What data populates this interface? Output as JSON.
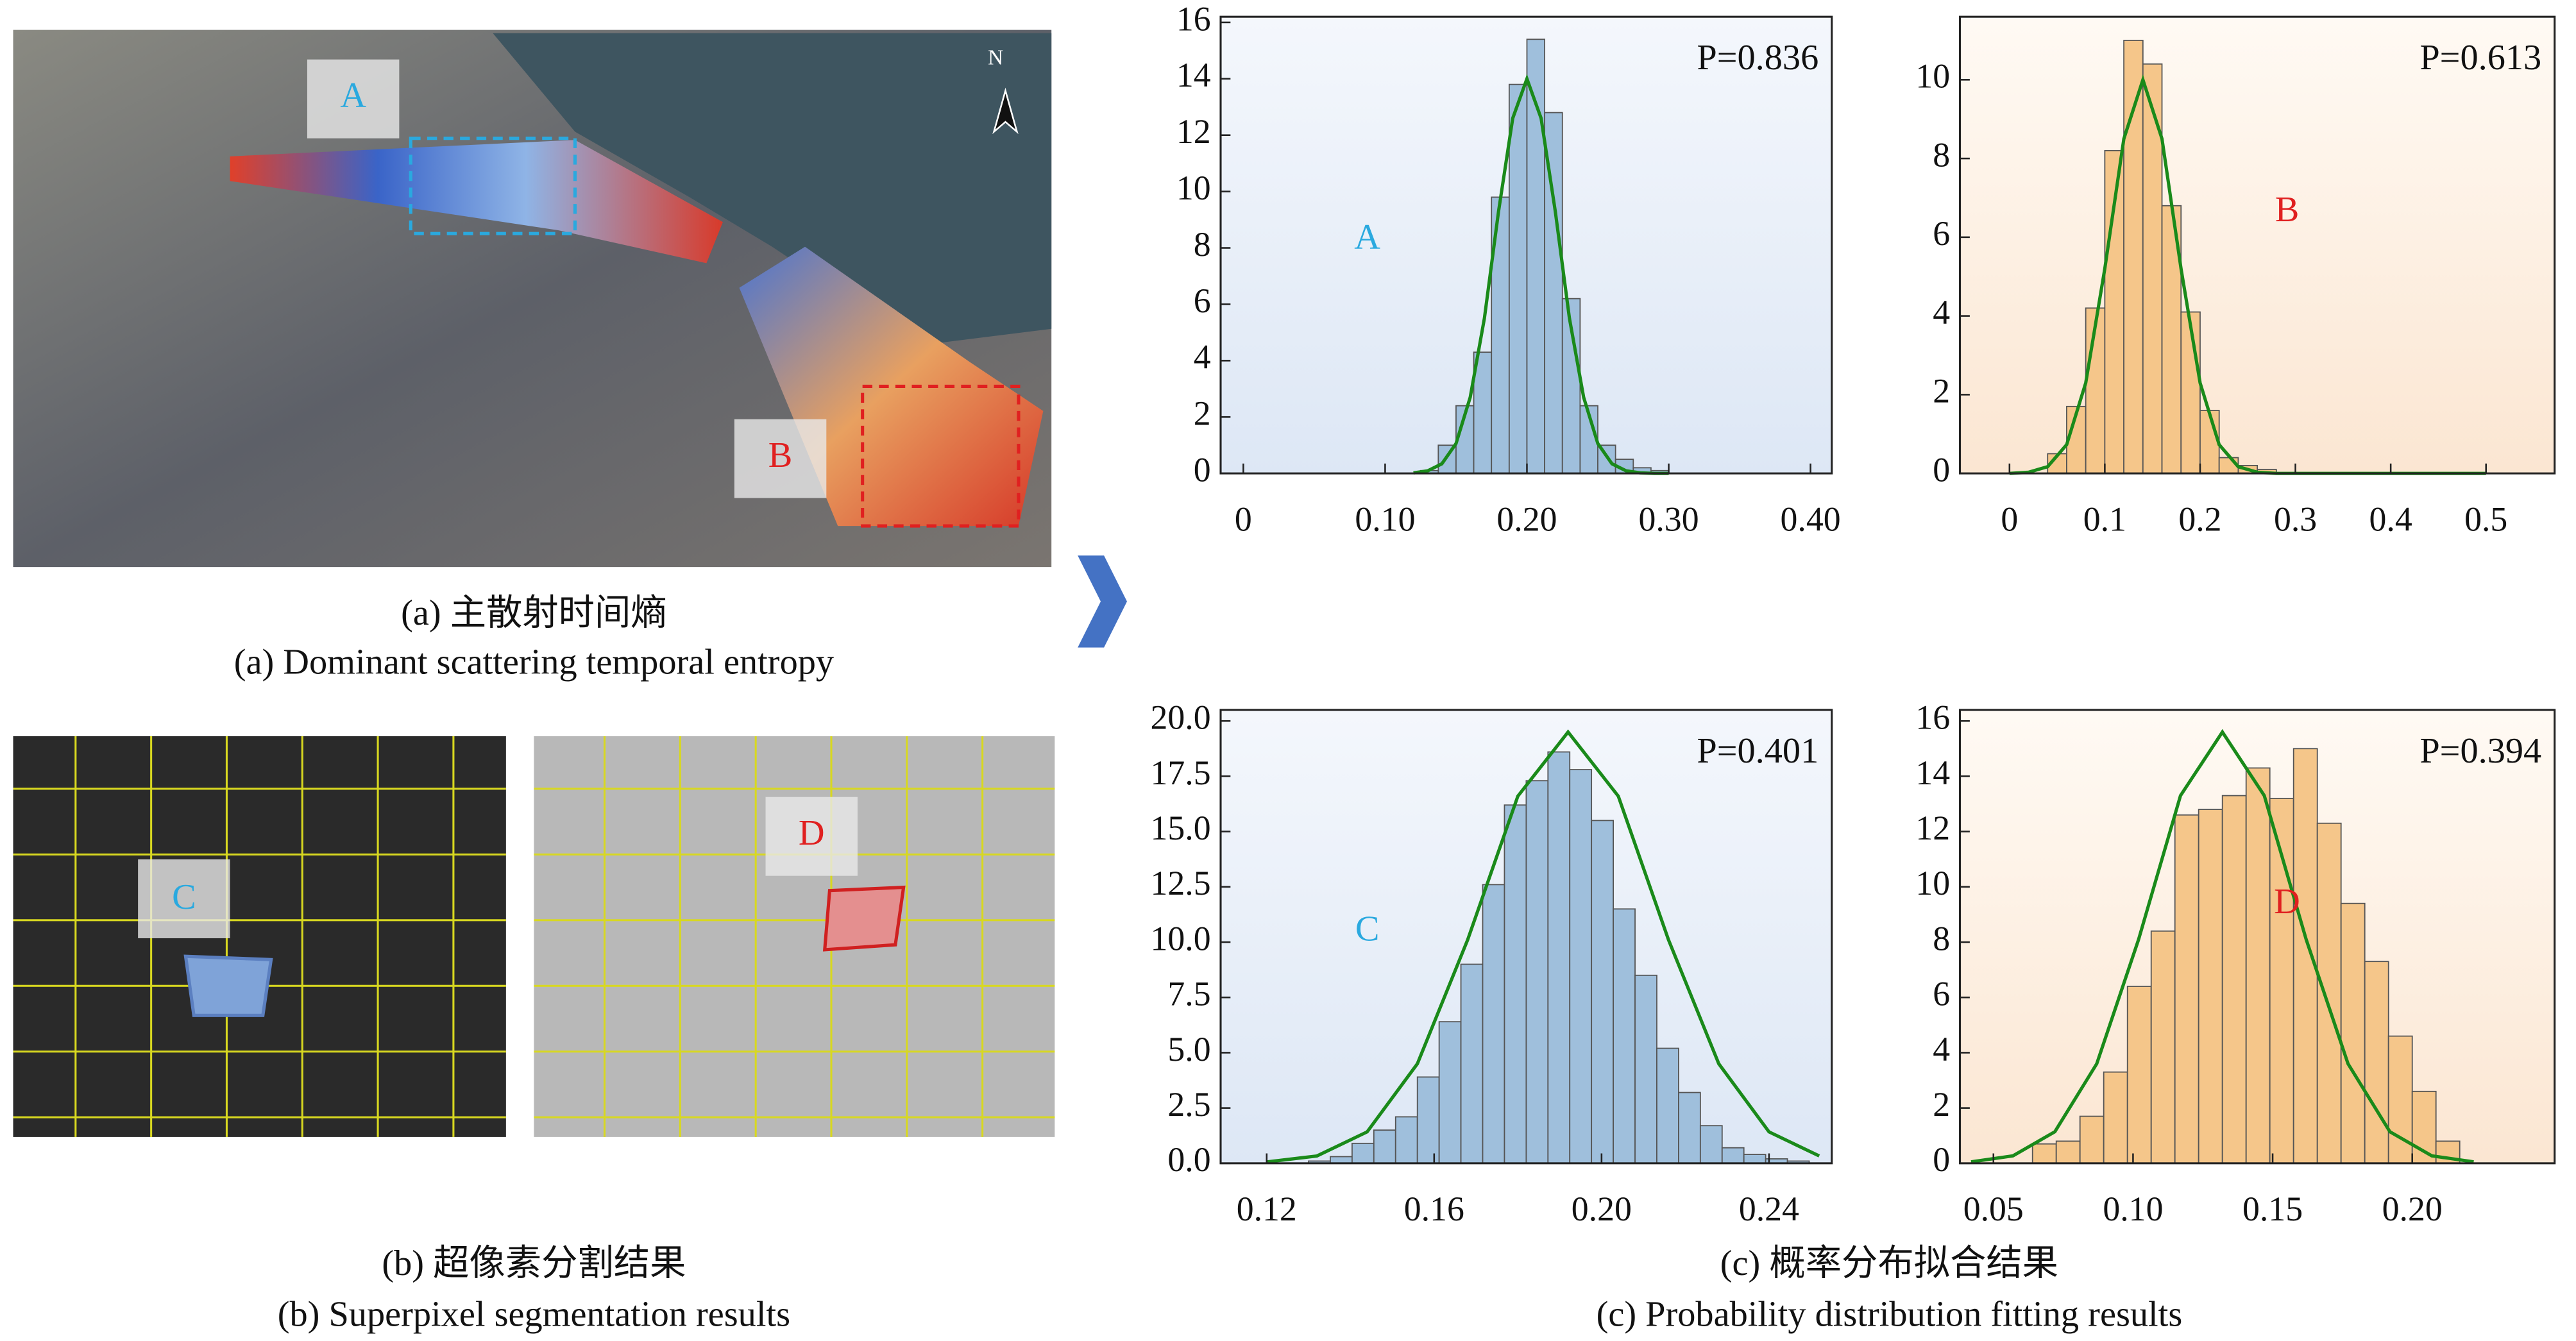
{
  "captions": {
    "a_zh": "(a) 主散射时间熵",
    "a_en": "(a) Dominant scattering temporal entropy",
    "b_zh": "(b) 超像素分割结果",
    "b_en": "(b) Superpixel segmentation results",
    "c_zh": "(c) 概率分布拟合结果",
    "c_en": "(c) Probability distribution fitting results"
  },
  "image_labels": [
    "A",
    "B",
    "C",
    "D"
  ],
  "north": "N",
  "chart_data": [
    {
      "type": "histogram",
      "label": "A",
      "label_color": "#2aa9df",
      "annotation": "P=0.836",
      "background": "blue",
      "color": "#9fbfdc",
      "edgecolor": "#555555",
      "bins": [
        0.125,
        0.1375,
        0.15,
        0.1625,
        0.175,
        0.1875,
        0.2,
        0.2125,
        0.225,
        0.2375,
        0.25,
        0.2625,
        0.275,
        0.2875,
        0.3
      ],
      "values": [
        0.1,
        1.0,
        2.4,
        4.3,
        9.8,
        13.8,
        15.4,
        12.8,
        6.2,
        2.4,
        1.0,
        0.5,
        0.2,
        0.1
      ],
      "fit": {
        "color": "#1a8a1a",
        "x": [
          0.12,
          0.13,
          0.14,
          0.15,
          0.16,
          0.17,
          0.18,
          0.19,
          0.2,
          0.21,
          0.22,
          0.23,
          0.24,
          0.25,
          0.26,
          0.27,
          0.28,
          0.29,
          0.3
        ],
        "values": [
          0.02,
          0.09,
          0.34,
          1.06,
          2.7,
          5.5,
          9.3,
          12.6,
          14,
          12.6,
          9.3,
          5.5,
          2.7,
          1.06,
          0.34,
          0.09,
          0.02,
          0,
          0
        ]
      },
      "xlim": [
        -0.016,
        0.415
      ],
      "ylim": [
        0,
        16.2
      ],
      "xticks": [
        0,
        {
          "value": 0.1,
          "label": "0.10"
        },
        {
          "value": 0.2,
          "label": "0.20"
        },
        {
          "value": 0.3,
          "label": "0.30"
        },
        {
          "value": 0.4,
          "label": "0.40"
        }
      ],
      "yticks": [
        0,
        2,
        4,
        6,
        8,
        10,
        12,
        14,
        16
      ]
    },
    {
      "type": "histogram",
      "label": "B",
      "label_color": "#e02020",
      "annotation": "P=0.613",
      "background": "peach",
      "color": "#f5c68a",
      "edgecolor": "#555555",
      "bins": [
        0.04,
        0.06,
        0.08,
        0.1,
        0.12,
        0.14,
        0.16,
        0.18,
        0.2,
        0.22,
        0.24,
        0.26,
        0.28
      ],
      "values": [
        0.5,
        1.7,
        4.2,
        8.2,
        11.0,
        10.4,
        6.8,
        4.1,
        1.6,
        0.4,
        0.2,
        0.1
      ],
      "fit": {
        "color": "#1a8a1a",
        "x": [
          0,
          0.02,
          0.04,
          0.06,
          0.08,
          0.1,
          0.12,
          0.14,
          0.16,
          0.18,
          0.2,
          0.22,
          0.24,
          0.26,
          0.28,
          0.5
        ],
        "values": [
          0,
          0.03,
          0.17,
          0.73,
          2.3,
          5.2,
          8.5,
          10,
          8.5,
          5.2,
          2.3,
          0.73,
          0.17,
          0.03,
          0,
          0
        ]
      },
      "xlim": [
        -0.052,
        0.572
      ],
      "ylim": [
        0,
        11.6
      ],
      "xticks": [
        0,
        0.1,
        0.2,
        0.3,
        0.4,
        0.5
      ],
      "yticks": [
        0,
        2,
        4,
        6,
        8,
        10
      ]
    },
    {
      "type": "histogram",
      "label": "C",
      "label_color": "#2aa9df",
      "annotation": "P=0.401",
      "background": "blue",
      "color": "#9fbfdc",
      "edgecolor": "#555555",
      "bins": [
        0.13,
        0.1352,
        0.1404,
        0.1456,
        0.1508,
        0.156,
        0.1612,
        0.1664,
        0.1716,
        0.1768,
        0.182,
        0.1872,
        0.1924,
        0.1976,
        0.2028,
        0.208,
        0.2132,
        0.2184,
        0.2236,
        0.2288,
        0.234,
        0.2392,
        0.2444,
        0.2496
      ],
      "values": [
        0.1,
        0.3,
        0.9,
        1.5,
        2.1,
        3.9,
        6.4,
        9.0,
        12.6,
        16.2,
        17.3,
        18.6,
        17.8,
        15.5,
        11.5,
        8.5,
        5.2,
        3.2,
        1.7,
        0.7,
        0.4,
        0.2,
        0.1
      ],
      "fit": {
        "color": "#1a8a1a",
        "x": [
          0.12,
          0.132,
          0.144,
          0.156,
          0.168,
          0.18,
          0.192,
          0.204,
          0.216,
          0.228,
          0.24,
          0.252
        ],
        "values": [
          0.06,
          0.33,
          1.42,
          4.5,
          10.1,
          16.6,
          19.5,
          16.6,
          10.1,
          4.5,
          1.42,
          0.33
        ]
      },
      "xlim": [
        0.109,
        0.255
      ],
      "ylim": [
        0,
        20.5
      ],
      "xticks": [
        0.12,
        0.16,
        {
          "value": 0.2,
          "label": "0.20"
        },
        0.24
      ],
      "yticks": [
        {
          "value": 0,
          "label": "0.0"
        },
        2.5,
        {
          "value": 5,
          "label": "5.0"
        },
        7.5,
        {
          "value": 10,
          "label": "10.0"
        },
        12.5,
        {
          "value": 15,
          "label": "15.0"
        },
        17.5,
        {
          "value": 20,
          "label": "20.0"
        }
      ]
    },
    {
      "type": "histogram",
      "label": "D",
      "label_color": "#e02020",
      "annotation": "P=0.394",
      "background": "peach",
      "color": "#f5c68a",
      "edgecolor": "#555555",
      "bins": [
        0.064,
        0.0725,
        0.081,
        0.0895,
        0.098,
        0.1065,
        0.115,
        0.1235,
        0.132,
        0.1405,
        0.149,
        0.1575,
        0.166,
        0.1745,
        0.183,
        0.1915,
        0.2,
        0.2085,
        0.217
      ],
      "values": [
        0.7,
        0.8,
        1.7,
        3.3,
        6.4,
        8.4,
        12.6,
        12.8,
        13.3,
        14.3,
        13.2,
        15.0,
        12.3,
        9.4,
        7.3,
        4.6,
        2.6,
        0.8
      ],
      "fit": {
        "color": "#1a8a1a",
        "x": [
          0.042,
          0.057,
          0.072,
          0.087,
          0.102,
          0.117,
          0.132,
          0.147,
          0.162,
          0.177,
          0.192,
          0.207,
          0.222
        ],
        "values": [
          0.05,
          0.27,
          1.14,
          3.6,
          8.1,
          13.3,
          15.6,
          13.3,
          8.1,
          3.6,
          1.14,
          0.27,
          0.05
        ]
      },
      "xlim": [
        0.038,
        0.251
      ],
      "ylim": [
        0,
        16.4
      ],
      "xticks": [
        0.05,
        {
          "value": 0.1,
          "label": "0.10"
        },
        0.15,
        {
          "value": 0.2,
          "label": "0.20"
        }
      ],
      "yticks": [
        0,
        2,
        4,
        6,
        8,
        10,
        12,
        14,
        16
      ]
    }
  ]
}
